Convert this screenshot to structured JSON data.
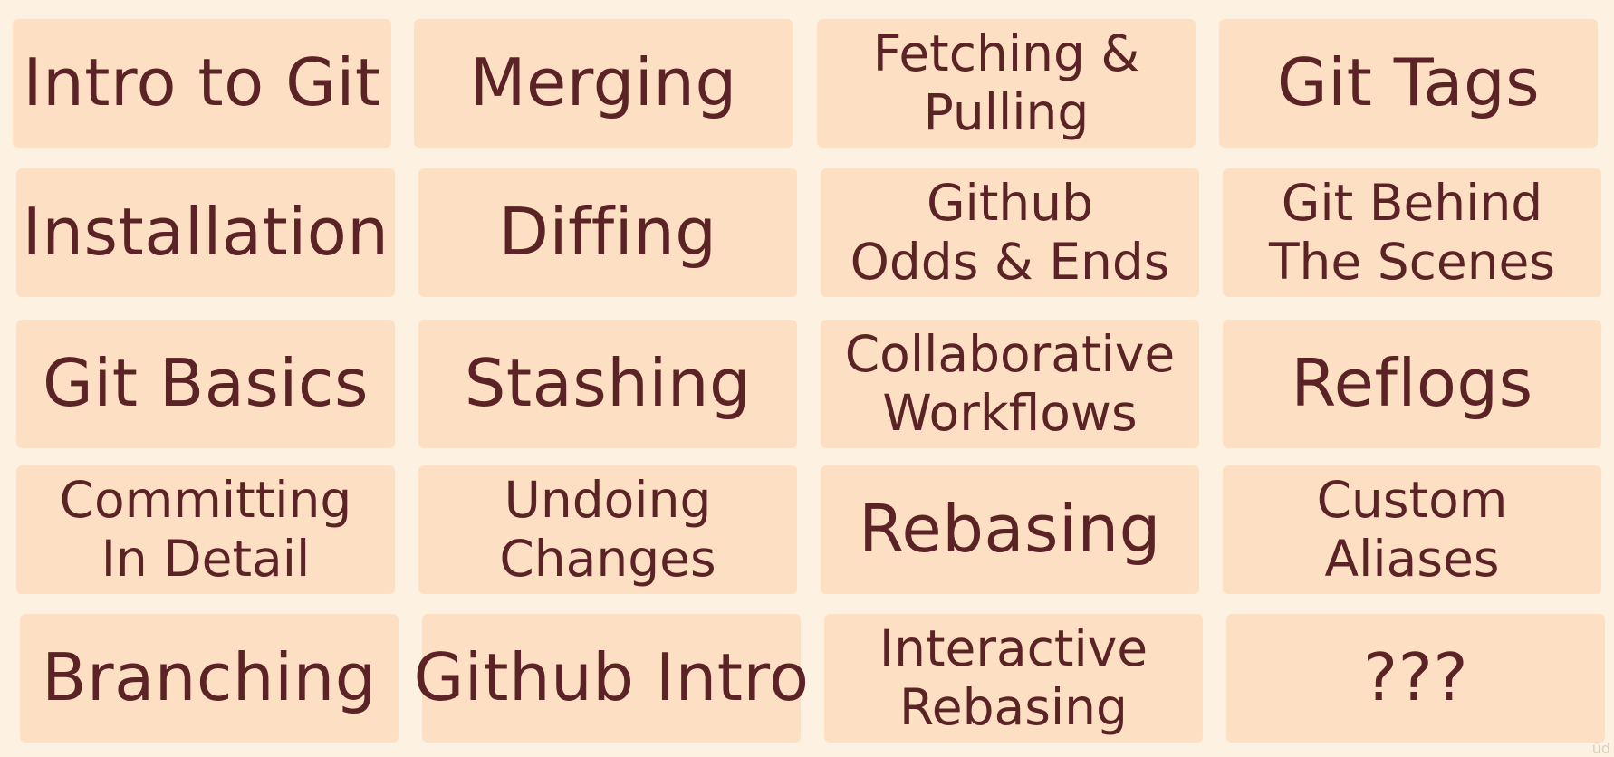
{
  "tiles": [
    {
      "lines": [
        "Intro to Git"
      ]
    },
    {
      "lines": [
        "Merging"
      ]
    },
    {
      "lines": [
        "Fetching &",
        "Pulling"
      ]
    },
    {
      "lines": [
        "Git Tags"
      ]
    },
    {
      "lines": [
        "Installation"
      ]
    },
    {
      "lines": [
        "Diffing"
      ]
    },
    {
      "lines": [
        "Github",
        "Odds & Ends"
      ]
    },
    {
      "lines": [
        "Git Behind",
        "The Scenes"
      ]
    },
    {
      "lines": [
        "Git Basics"
      ]
    },
    {
      "lines": [
        "Stashing"
      ]
    },
    {
      "lines": [
        "Collaborative",
        "Workflows"
      ]
    },
    {
      "lines": [
        "Reflogs"
      ]
    },
    {
      "lines": [
        "Committing",
        "In Detail"
      ]
    },
    {
      "lines": [
        "Undoing",
        "Changes"
      ]
    },
    {
      "lines": [
        "Rebasing"
      ]
    },
    {
      "lines": [
        "Custom",
        "Aliases"
      ]
    },
    {
      "lines": [
        "Branching"
      ]
    },
    {
      "lines": [
        "Github Intro"
      ]
    },
    {
      "lines": [
        "Interactive",
        "Rebasing"
      ]
    },
    {
      "lines": [
        "???"
      ]
    }
  ],
  "colors": {
    "background": "#fdf2e1",
    "tile": "#fde0c4",
    "text": "#5b2326"
  },
  "corner_mark": "ûd"
}
